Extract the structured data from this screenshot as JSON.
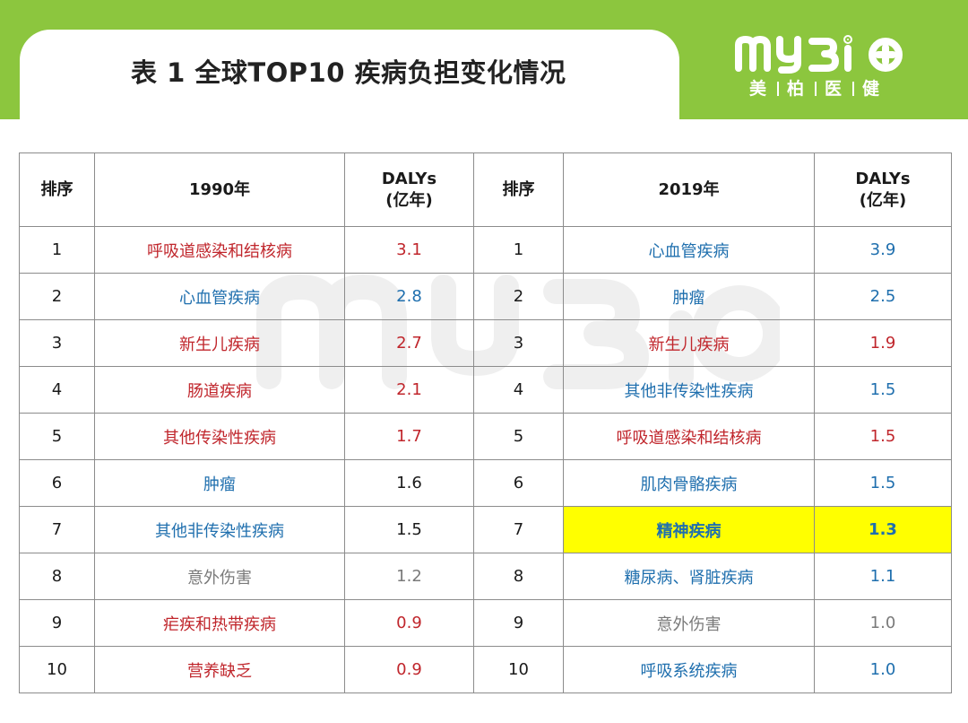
{
  "header": {
    "title": "表 1 全球TOP10 疾病负担变化情况",
    "logo_text": "MY3iO",
    "logo_sub": [
      "美",
      "柏",
      "医",
      "健"
    ]
  },
  "colors": {
    "band_green": "#8cc63e",
    "red_text": "#c0262c",
    "blue_text": "#1f6fae",
    "gray_text": "#7a7a7a",
    "highlight": "#ffff00"
  },
  "table": {
    "headers": {
      "rank_left": "排序",
      "year_left": "1990年",
      "dalys_left_1": "DALYs",
      "dalys_left_2": "(亿年)",
      "rank_right": "排序",
      "year_right": "2019年",
      "dalys_right_1": "DALYs",
      "dalys_right_2": "(亿年)"
    },
    "rows": [
      {
        "rank": "1",
        "disease_1990": "呼吸道感染和结核病",
        "dalys_1990": "3.1",
        "rank_2019": "1",
        "disease_2019": "心血管疾病",
        "dalys_2019": "3.9"
      },
      {
        "rank": "2",
        "disease_1990": "心血管疾病",
        "dalys_1990": "2.8",
        "rank_2019": "2",
        "disease_2019": "肿瘤",
        "dalys_2019": "2.5"
      },
      {
        "rank": "3",
        "disease_1990": "新生儿疾病",
        "dalys_1990": "2.7",
        "rank_2019": "3",
        "disease_2019": "新生儿疾病",
        "dalys_2019": "1.9"
      },
      {
        "rank": "4",
        "disease_1990": "肠道疾病",
        "dalys_1990": "2.1",
        "rank_2019": "4",
        "disease_2019": "其他非传染性疾病",
        "dalys_2019": "1.5"
      },
      {
        "rank": "5",
        "disease_1990": "其他传染性疾病",
        "dalys_1990": "1.7",
        "rank_2019": "5",
        "disease_2019": "呼吸道感染和结核病",
        "dalys_2019": "1.5"
      },
      {
        "rank": "6",
        "disease_1990": "肿瘤",
        "dalys_1990": "1.6",
        "rank_2019": "6",
        "disease_2019": "肌肉骨骼疾病",
        "dalys_2019": "1.5"
      },
      {
        "rank": "7",
        "disease_1990": "其他非传染性疾病",
        "dalys_1990": "1.5",
        "rank_2019": "7",
        "disease_2019": "精神疾病",
        "dalys_2019": "1.3"
      },
      {
        "rank": "8",
        "disease_1990": "意外伤害",
        "dalys_1990": "1.2",
        "rank_2019": "8",
        "disease_2019": "糖尿病、肾脏疾病",
        "dalys_2019": "1.1"
      },
      {
        "rank": "9",
        "disease_1990": "疟疾和热带疾病",
        "dalys_1990": "0.9",
        "rank_2019": "9",
        "disease_2019": "意外伤害",
        "dalys_2019": "1.0"
      },
      {
        "rank": "10",
        "disease_1990": "营养缺乏",
        "dalys_1990": "0.9",
        "rank_2019": "10",
        "disease_2019": "呼吸系统疾病",
        "dalys_2019": "1.0"
      }
    ]
  }
}
